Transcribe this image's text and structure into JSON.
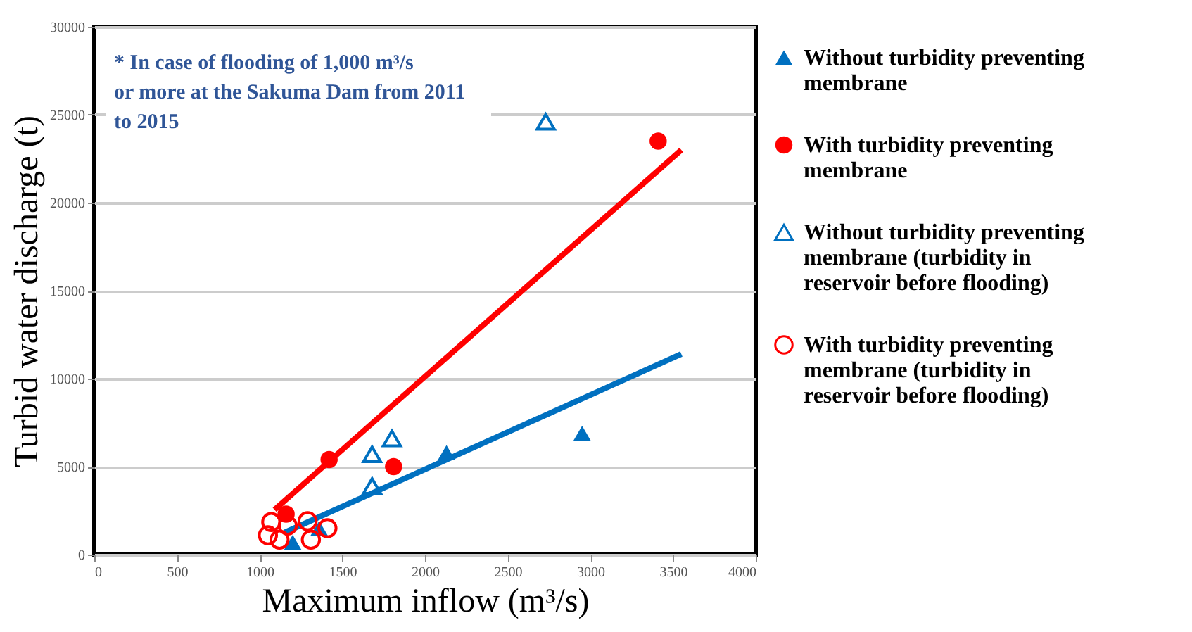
{
  "chart_data": {
    "type": "scatter",
    "xlabel": "Maximum inflow (m³/s)",
    "ylabel": "Turbid water discharge (t)",
    "xlim": [
      0,
      4000
    ],
    "xticks": [
      0,
      500,
      1000,
      1500,
      2000,
      2500,
      3000,
      3500,
      4000
    ],
    "ylim": [
      0,
      30000
    ],
    "yticks": [
      0,
      5000,
      10000,
      15000,
      20000,
      25000,
      30000
    ],
    "grid": "y",
    "legend": "right",
    "annotations": [
      "* In case of flooding of 1,000 m³/s or more at the Sakuma Dam from 2011 to 2015"
    ],
    "series": [
      {
        "name": "Without turbidity preventing membrane",
        "color": "#0070c0",
        "marker": "triangle",
        "x": [
          2950,
          2130,
          1200,
          1360
        ],
        "values": [
          6900,
          5800,
          700,
          1500
        ]
      },
      {
        "name": "With turbidity preventing membrane",
        "color": "#ff0000",
        "marker": "circle",
        "x": [
          3410,
          1420,
          1810,
          1160
        ],
        "values": [
          23500,
          5400,
          5000,
          2300
        ]
      },
      {
        "name": "Without turbidity preventing membrane (turbidity in reservoir before flooding)",
        "color": "#0070c0",
        "marker": "triangle-open",
        "x": [
          2730,
          1800,
          1680,
          1680
        ],
        "values": [
          24600,
          6600,
          5700,
          3900
        ]
      },
      {
        "name": "With turbidity preventing membrane (turbidity in reservoir before flooding)",
        "color": "#ff0000",
        "marker": "circle-open",
        "x": [
          1070,
          1050,
          1120,
          1170,
          1290,
          1310,
          1410
        ],
        "values": [
          1850,
          1100,
          850,
          1650,
          1900,
          850,
          1500
        ]
      },
      {
        "type": "line",
        "color": "#ff0000",
        "x": [
          1090,
          3550
        ],
        "values": [
          2550,
          23000
        ]
      },
      {
        "type": "line",
        "color": "#0070c0",
        "x": [
          1150,
          3550
        ],
        "values": [
          1250,
          11400
        ]
      }
    ]
  }
}
